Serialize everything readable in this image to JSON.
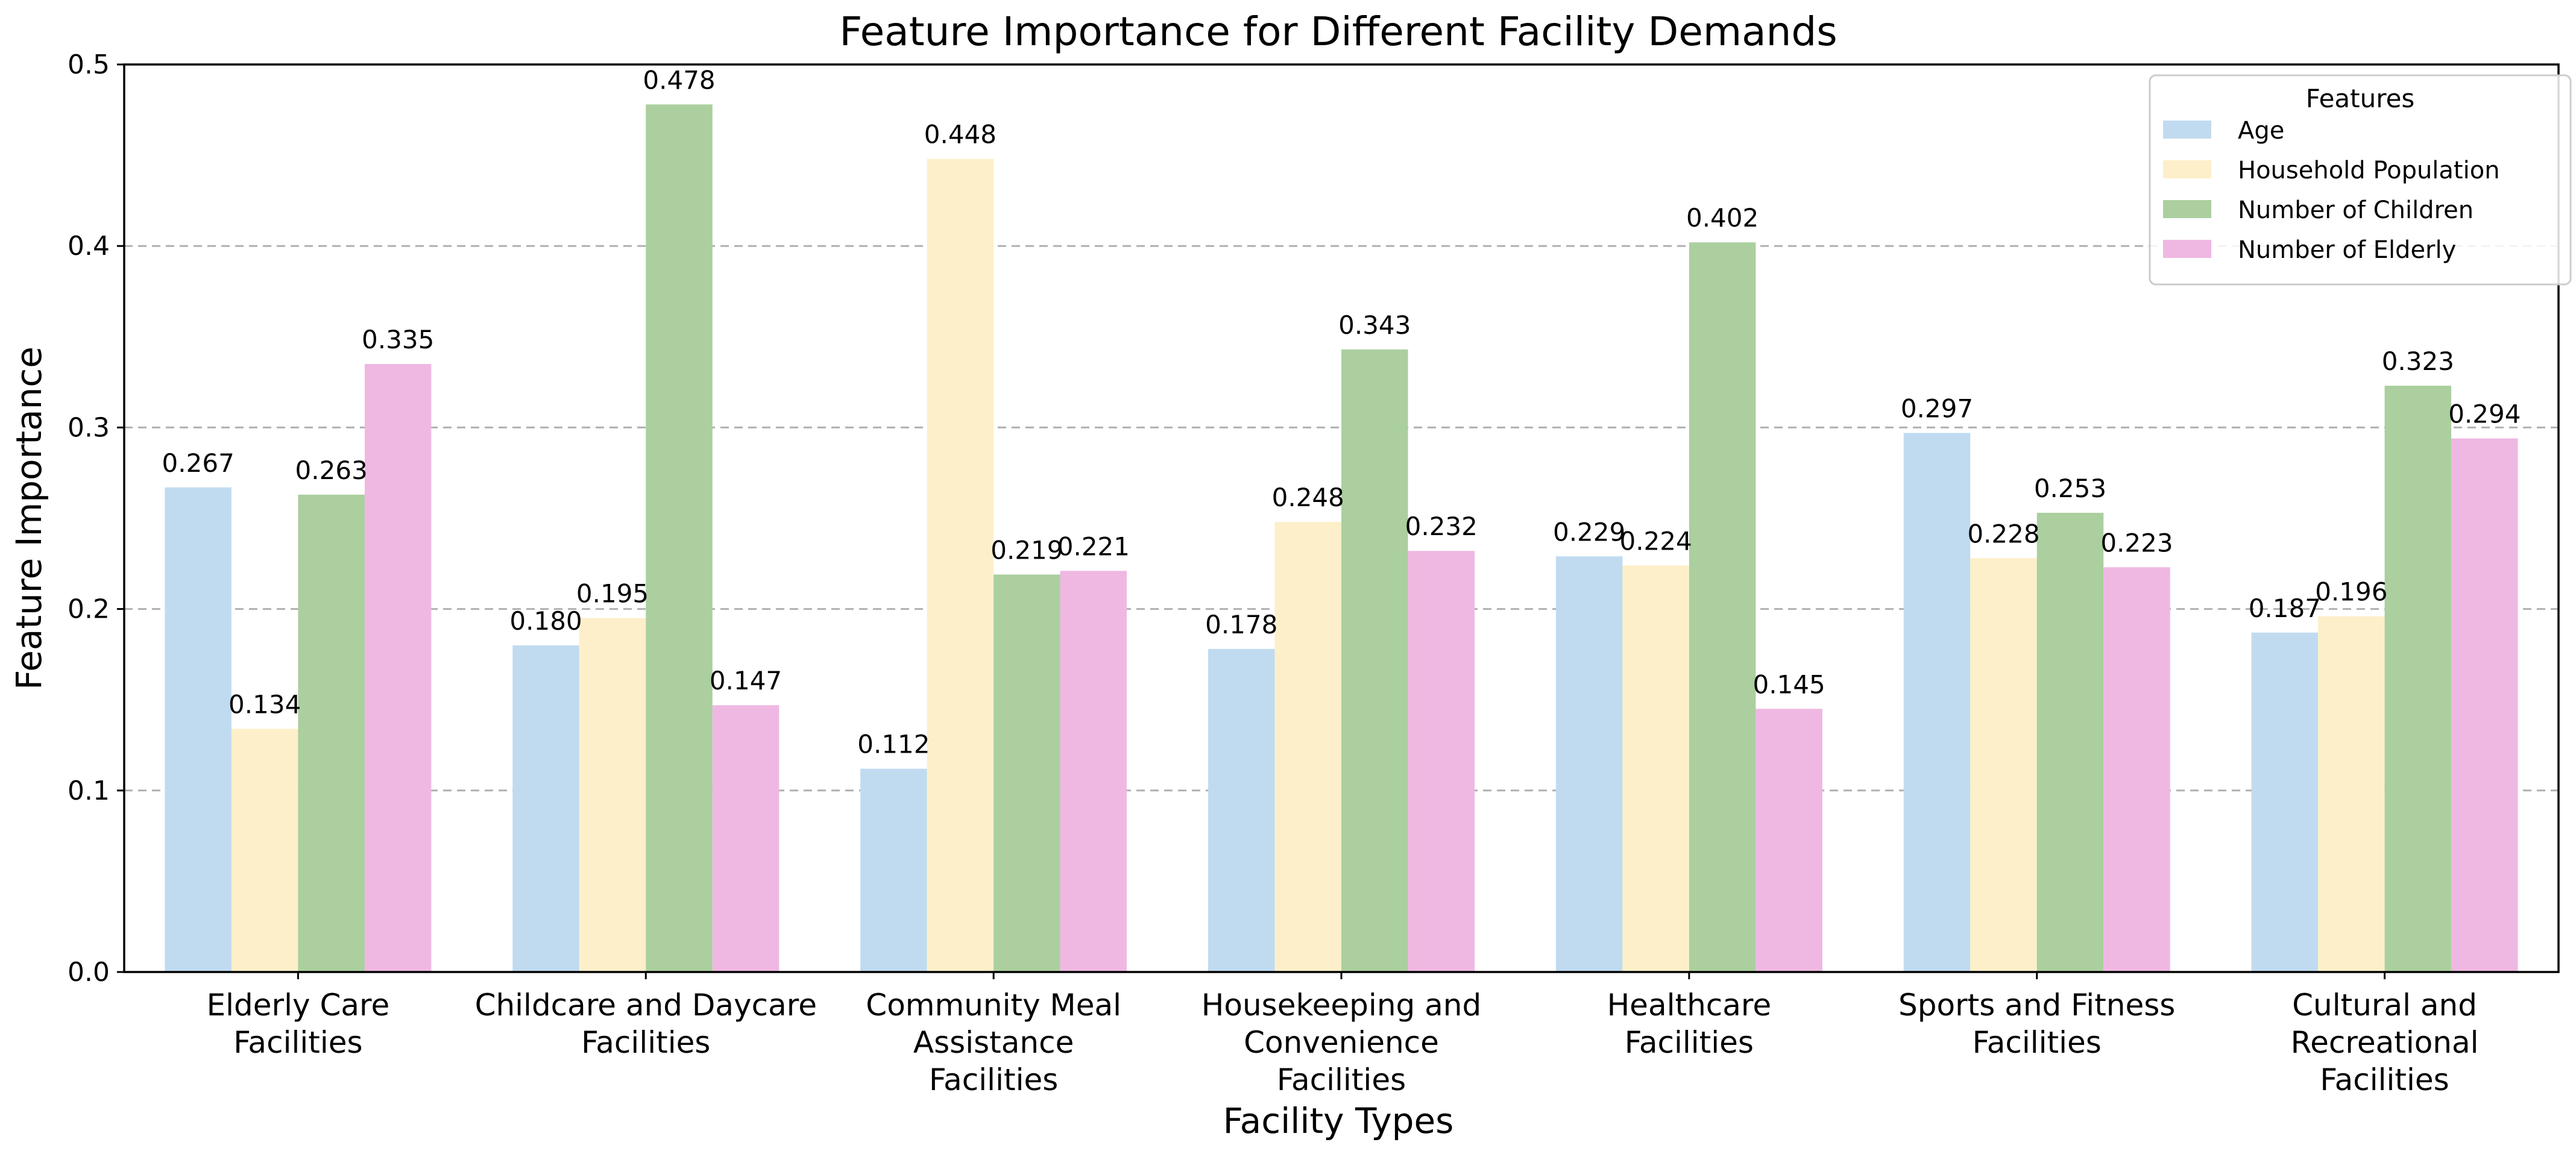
{
  "chart_data": {
    "type": "bar",
    "title": "Feature Importance for Different Facility Demands",
    "xlabel": "Facility Types",
    "ylabel": "Feature Importance",
    "ylim": [
      0,
      0.5
    ],
    "yticks": [
      "0.0",
      "0.1",
      "0.2",
      "0.3",
      "0.4",
      "0.5"
    ],
    "grid": "y-dashed",
    "legend_title": "Features",
    "legend_position": "top-right",
    "categories": [
      [
        "Elderly Care",
        "Facilities"
      ],
      [
        "Childcare and Daycare",
        "Facilities"
      ],
      [
        "Community Meal",
        "Assistance",
        "Facilities"
      ],
      [
        "Housekeeping and",
        "Convenience",
        "Facilities"
      ],
      [
        "Healthcare",
        "Facilities"
      ],
      [
        "Sports and Fitness",
        "Facilities"
      ],
      [
        "Cultural and",
        "Recreational",
        "Facilities"
      ]
    ],
    "series": [
      {
        "name": "Age",
        "color": "#c0dbf0",
        "values": [
          0.267,
          0.18,
          0.112,
          0.178,
          0.229,
          0.297,
          0.187
        ]
      },
      {
        "name": "Household Population",
        "color": "#fdefc9",
        "values": [
          0.134,
          0.195,
          0.448,
          0.248,
          0.224,
          0.228,
          0.196
        ]
      },
      {
        "name": "Number of Children",
        "color": "#abcf9f",
        "values": [
          0.263,
          0.478,
          0.219,
          0.343,
          0.402,
          0.253,
          0.323
        ]
      },
      {
        "name": "Number of Elderly",
        "color": "#efb8e2",
        "values": [
          0.335,
          0.147,
          0.221,
          0.232,
          0.145,
          0.223,
          0.294
        ]
      }
    ]
  }
}
